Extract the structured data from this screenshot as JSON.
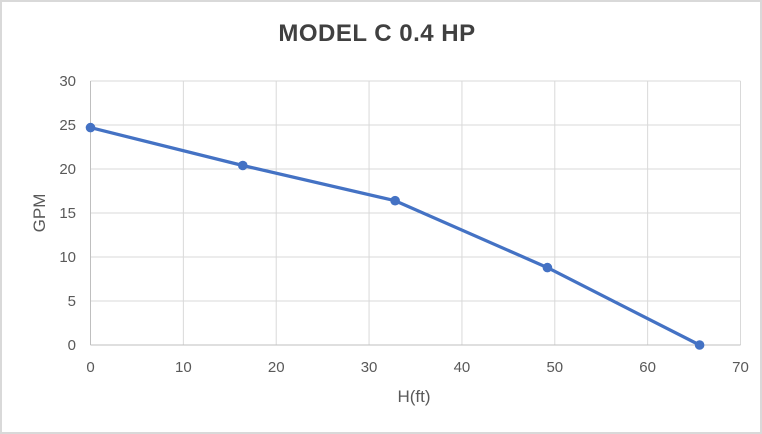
{
  "window": {
    "background": "#FFFFFF",
    "border_color": "#D9D9D9"
  },
  "chart_data": {
    "type": "line",
    "title": "MODEL C 0.4 HP",
    "xlabel": "H(ft)",
    "ylabel": "GPM",
    "points": [
      [
        0,
        24.7
      ],
      [
        16.4,
        20.4
      ],
      [
        32.8,
        16.4
      ],
      [
        49.2,
        8.8
      ],
      [
        65.6,
        0
      ]
    ],
    "xlim": [
      0,
      70
    ],
    "ylim": [
      0,
      30
    ],
    "x_ticks": [
      0,
      10,
      20,
      30,
      40,
      50,
      60,
      70
    ],
    "y_ticks": [
      0,
      5,
      10,
      15,
      20,
      25,
      30
    ],
    "grid": "both",
    "legend": "none",
    "series_color": "#4472C4",
    "marker": "circle",
    "gridline_color": "#D9D9D9",
    "axis_line_color": "#BFBFBF",
    "tick_label_color": "#595959",
    "axis_title_color": "#595959",
    "title_color": "#404040"
  }
}
